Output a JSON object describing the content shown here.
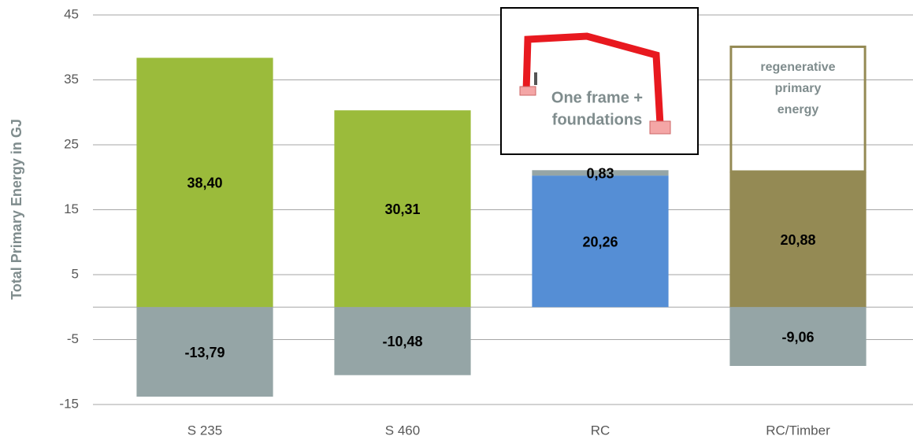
{
  "chart_data": {
    "type": "bar",
    "y_label": "Total Primary Energy in GJ",
    "categories": [
      "S 235",
      "S 460",
      "RC",
      "RC/Timber"
    ],
    "ylim": [
      -15,
      45
    ],
    "yticks": [
      -15,
      -5,
      5,
      15,
      25,
      35,
      45
    ],
    "grid": true,
    "series": [
      {
        "colors": [
          "#9bbb3b",
          "#9bbb3b",
          "#558ed5",
          "#948a54"
        ],
        "values": [
          38.4,
          30.31,
          20.26,
          20.88
        ],
        "value_labels": [
          "38,40",
          "30,31",
          "20,26",
          "20,88"
        ]
      },
      {
        "color": "#95a5a6",
        "values": [
          null,
          null,
          0.83,
          null
        ],
        "value_labels": [
          null,
          null,
          "0,83",
          null
        ]
      },
      {
        "color": "#948a54",
        "style": "outline",
        "values": [
          null,
          null,
          null,
          19.4
        ]
      },
      {
        "color": "#95a5a6",
        "values": [
          -13.79,
          -10.48,
          null,
          -9.06
        ],
        "value_labels": [
          "-13,79",
          "-10,48",
          null,
          "-9,06"
        ]
      }
    ],
    "inset_text": [
      "One frame +",
      "foundations"
    ],
    "regenerative_label": [
      "regenerative",
      "primary",
      "energy"
    ]
  }
}
